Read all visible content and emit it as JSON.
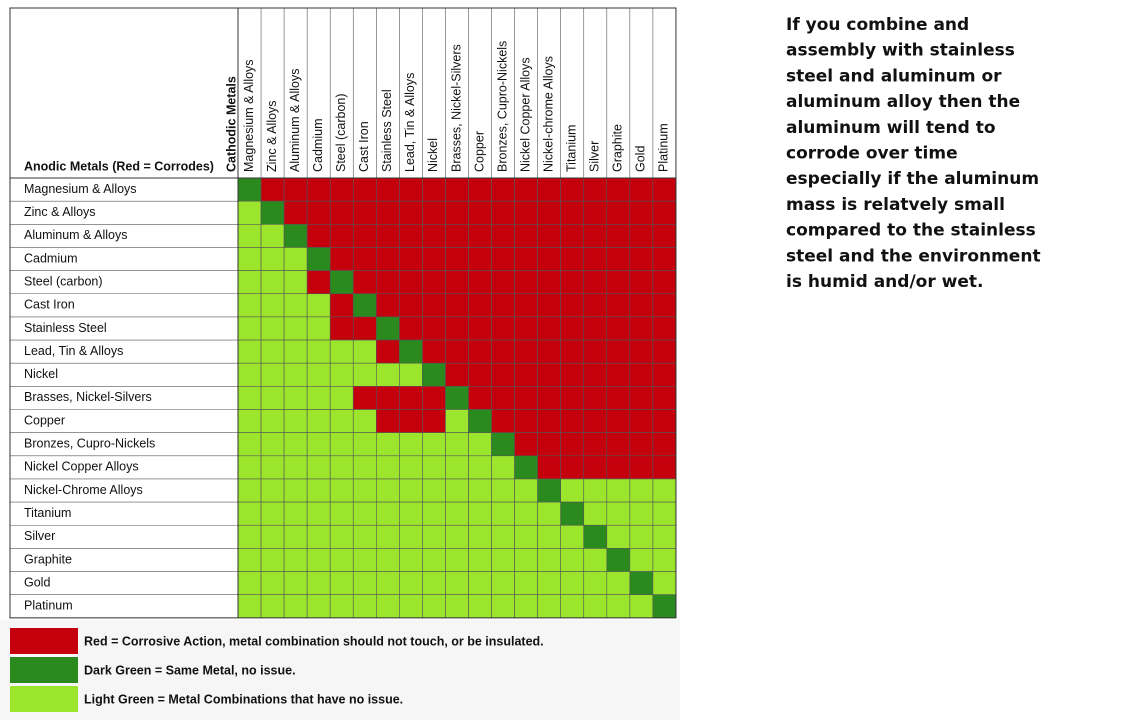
{
  "table": {
    "column_axis_label": "Cathodic Metals",
    "row_axis_label": "Anodic Metals (Red = Corrodes)",
    "columns": [
      "Magnesium & Alloys",
      "Zinc & Alloys",
      "Aluminum & Alloys",
      "Cadmium",
      "Steel (carbon)",
      "Cast Iron",
      "Stainless Steel",
      "Lead, Tin & Alloys",
      "Nickel",
      "Brasses, Nickel-Silvers",
      "Copper",
      "Bronzes, Cupro-Nickels",
      "Nickel Copper Alloys",
      "Nickel-chrome Alloys",
      "Titanium",
      "Silver",
      "Graphite",
      "Gold",
      "Platinum"
    ],
    "rows": [
      "Magnesium & Alloys",
      "Zinc & Alloys",
      "Aluminum & Alloys",
      "Cadmium",
      "Steel (carbon)",
      "Cast Iron",
      "Stainless Steel",
      "Lead, Tin & Alloys",
      "Nickel",
      "Brasses, Nickel-Silvers",
      "Copper",
      "Bronzes, Cupro-Nickels",
      "Nickel Copper Alloys",
      "Nickel-Chrome Alloys",
      "Titanium",
      "Silver",
      "Graphite",
      "Gold",
      "Platinum"
    ],
    "cells": [
      [
        "#2b8a1e",
        "#c4000d",
        "#c4000d",
        "#c4000d",
        "#c4000d",
        "#c4000d",
        "#c4000d",
        "#c4000d",
        "#c4000d",
        "#c4000d",
        "#c4000d",
        "#c4000d",
        "#c4000d",
        "#c4000d",
        "#c4000d",
        "#c4000d",
        "#c4000d",
        "#c4000d",
        "#c4000d"
      ],
      [
        "#9be52c",
        "#2b8a1e",
        "#c4000d",
        "#c4000d",
        "#c4000d",
        "#c4000d",
        "#c4000d",
        "#c4000d",
        "#c4000d",
        "#c4000d",
        "#c4000d",
        "#c4000d",
        "#c4000d",
        "#c4000d",
        "#c4000d",
        "#c4000d",
        "#c4000d",
        "#c4000d",
        "#c4000d"
      ],
      [
        "#9be52c",
        "#9be52c",
        "#2b8a1e",
        "#c4000d",
        "#c4000d",
        "#c4000d",
        "#c4000d",
        "#c4000d",
        "#c4000d",
        "#c4000d",
        "#c4000d",
        "#c4000d",
        "#c4000d",
        "#c4000d",
        "#c4000d",
        "#c4000d",
        "#c4000d",
        "#c4000d",
        "#c4000d"
      ],
      [
        "#9be52c",
        "#9be52c",
        "#9be52c",
        "#2b8a1e",
        "#c4000d",
        "#c4000d",
        "#c4000d",
        "#c4000d",
        "#c4000d",
        "#c4000d",
        "#c4000d",
        "#c4000d",
        "#c4000d",
        "#c4000d",
        "#c4000d",
        "#c4000d",
        "#c4000d",
        "#c4000d",
        "#c4000d"
      ],
      [
        "#9be52c",
        "#9be52c",
        "#9be52c",
        "#c4000d",
        "#2b8a1e",
        "#c4000d",
        "#c4000d",
        "#c4000d",
        "#c4000d",
        "#c4000d",
        "#c4000d",
        "#c4000d",
        "#c4000d",
        "#c4000d",
        "#c4000d",
        "#c4000d",
        "#c4000d",
        "#c4000d",
        "#c4000d"
      ],
      [
        "#9be52c",
        "#9be52c",
        "#9be52c",
        "#9be52c",
        "#c4000d",
        "#2b8a1e",
        "#c4000d",
        "#c4000d",
        "#c4000d",
        "#c4000d",
        "#c4000d",
        "#c4000d",
        "#c4000d",
        "#c4000d",
        "#c4000d",
        "#c4000d",
        "#c4000d",
        "#c4000d",
        "#c4000d"
      ],
      [
        "#9be52c",
        "#9be52c",
        "#9be52c",
        "#9be52c",
        "#c4000d",
        "#c4000d",
        "#2b8a1e",
        "#c4000d",
        "#c4000d",
        "#c4000d",
        "#c4000d",
        "#c4000d",
        "#c4000d",
        "#c4000d",
        "#c4000d",
        "#c4000d",
        "#c4000d",
        "#c4000d",
        "#c4000d"
      ],
      [
        "#9be52c",
        "#9be52c",
        "#9be52c",
        "#9be52c",
        "#9be52c",
        "#9be52c",
        "#c4000d",
        "#2b8a1e",
        "#c4000d",
        "#c4000d",
        "#c4000d",
        "#c4000d",
        "#c4000d",
        "#c4000d",
        "#c4000d",
        "#c4000d",
        "#c4000d",
        "#c4000d",
        "#c4000d"
      ],
      [
        "#9be52c",
        "#9be52c",
        "#9be52c",
        "#9be52c",
        "#9be52c",
        "#9be52c",
        "#9be52c",
        "#9be52c",
        "#2b8a1e",
        "#c4000d",
        "#c4000d",
        "#c4000d",
        "#c4000d",
        "#c4000d",
        "#c4000d",
        "#c4000d",
        "#c4000d",
        "#c4000d",
        "#c4000d"
      ],
      [
        "#9be52c",
        "#9be52c",
        "#9be52c",
        "#9be52c",
        "#9be52c",
        "#c4000d",
        "#c4000d",
        "#c4000d",
        "#c4000d",
        "#2b8a1e",
        "#c4000d",
        "#c4000d",
        "#c4000d",
        "#c4000d",
        "#c4000d",
        "#c4000d",
        "#c4000d",
        "#c4000d",
        "#c4000d"
      ],
      [
        "#9be52c",
        "#9be52c",
        "#9be52c",
        "#9be52c",
        "#9be52c",
        "#9be52c",
        "#c4000d",
        "#c4000d",
        "#c4000d",
        "#9be52c",
        "#2b8a1e",
        "#c4000d",
        "#c4000d",
        "#c4000d",
        "#c4000d",
        "#c4000d",
        "#c4000d",
        "#c4000d",
        "#c4000d"
      ],
      [
        "#9be52c",
        "#9be52c",
        "#9be52c",
        "#9be52c",
        "#9be52c",
        "#9be52c",
        "#9be52c",
        "#9be52c",
        "#9be52c",
        "#9be52c",
        "#9be52c",
        "#2b8a1e",
        "#c4000d",
        "#c4000d",
        "#c4000d",
        "#c4000d",
        "#c4000d",
        "#c4000d",
        "#c4000d"
      ],
      [
        "#9be52c",
        "#9be52c",
        "#9be52c",
        "#9be52c",
        "#9be52c",
        "#9be52c",
        "#9be52c",
        "#9be52c",
        "#9be52c",
        "#9be52c",
        "#9be52c",
        "#9be52c",
        "#2b8a1e",
        "#c4000d",
        "#c4000d",
        "#c4000d",
        "#c4000d",
        "#c4000d",
        "#c4000d"
      ],
      [
        "#9be52c",
        "#9be52c",
        "#9be52c",
        "#9be52c",
        "#9be52c",
        "#9be52c",
        "#9be52c",
        "#9be52c",
        "#9be52c",
        "#9be52c",
        "#9be52c",
        "#9be52c",
        "#9be52c",
        "#2b8a1e",
        "#9be52c",
        "#9be52c",
        "#9be52c",
        "#9be52c",
        "#9be52c"
      ],
      [
        "#9be52c",
        "#9be52c",
        "#9be52c",
        "#9be52c",
        "#9be52c",
        "#9be52c",
        "#9be52c",
        "#9be52c",
        "#9be52c",
        "#9be52c",
        "#9be52c",
        "#9be52c",
        "#9be52c",
        "#9be52c",
        "#2b8a1e",
        "#9be52c",
        "#9be52c",
        "#9be52c",
        "#9be52c"
      ],
      [
        "#9be52c",
        "#9be52c",
        "#9be52c",
        "#9be52c",
        "#9be52c",
        "#9be52c",
        "#9be52c",
        "#9be52c",
        "#9be52c",
        "#9be52c",
        "#9be52c",
        "#9be52c",
        "#9be52c",
        "#9be52c",
        "#9be52c",
        "#2b8a1e",
        "#9be52c",
        "#9be52c",
        "#9be52c"
      ],
      [
        "#9be52c",
        "#9be52c",
        "#9be52c",
        "#9be52c",
        "#9be52c",
        "#9be52c",
        "#9be52c",
        "#9be52c",
        "#9be52c",
        "#9be52c",
        "#9be52c",
        "#9be52c",
        "#9be52c",
        "#9be52c",
        "#9be52c",
        "#9be52c",
        "#2b8a1e",
        "#9be52c",
        "#9be52c"
      ],
      [
        "#9be52c",
        "#9be52c",
        "#9be52c",
        "#9be52c",
        "#9be52c",
        "#9be52c",
        "#9be52c",
        "#9be52c",
        "#9be52c",
        "#9be52c",
        "#9be52c",
        "#9be52c",
        "#9be52c",
        "#9be52c",
        "#9be52c",
        "#9be52c",
        "#9be52c",
        "#2b8a1e",
        "#9be52c"
      ],
      [
        "#9be52c",
        "#9be52c",
        "#9be52c",
        "#9be52c",
        "#9be52c",
        "#9be52c",
        "#9be52c",
        "#9be52c",
        "#9be52c",
        "#9be52c",
        "#9be52c",
        "#9be52c",
        "#9be52c",
        "#9be52c",
        "#9be52c",
        "#9be52c",
        "#9be52c",
        "#9be52c",
        "#2b8a1e"
      ]
    ]
  },
  "legend": [
    {
      "color": "#c4000d",
      "label": "Red = Corrosive Action, metal combination should not touch, or be insulated."
    },
    {
      "color": "#2b8a1e",
      "label": "Dark Green = Same Metal, no issue."
    },
    {
      "color": "#9be52c",
      "label": "Light Green = Metal Combinations that have no issue."
    }
  ],
  "note": [
    "If you combine and",
    "assembly with stainless",
    "steel and aluminum or",
    "aluminum alloy then the",
    "aluminum will tend to",
    "corrode over time",
    "especially if the aluminum",
    "mass is relatvely small",
    "compared to the stainless",
    "steel and the environment",
    "is humid and/or wet."
  ]
}
